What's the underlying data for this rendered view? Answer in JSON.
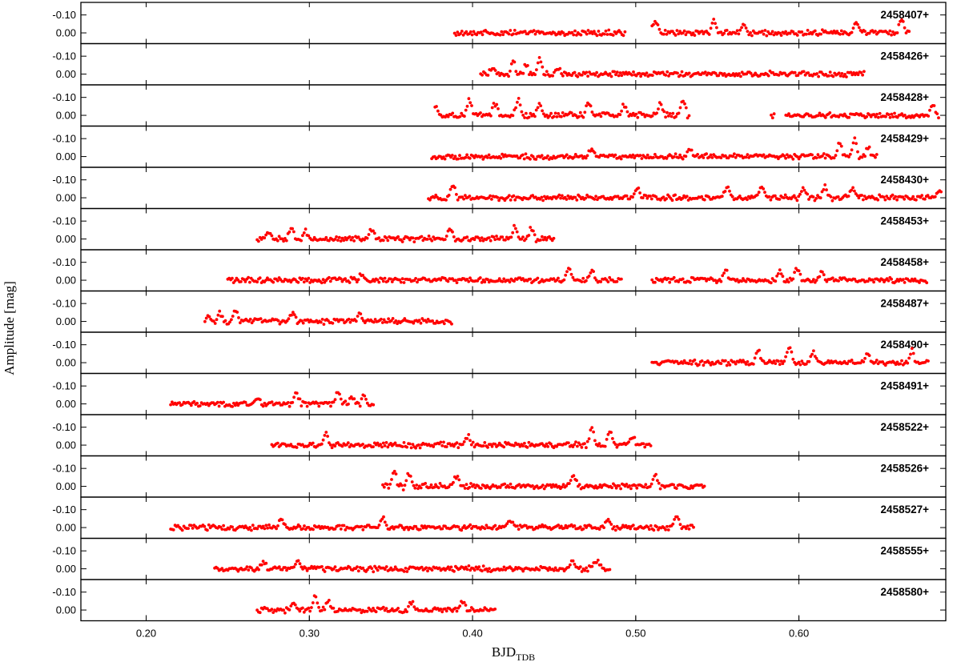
{
  "chart_data": {
    "type": "scatter",
    "title": "",
    "xlabel": {
      "main": "BJD",
      "sub": "TDB"
    },
    "ylabel": "Amplitude [mag]",
    "xlim": [
      0.16,
      0.69
    ],
    "ylim_per_panel": [
      0.06,
      -0.17
    ],
    "y_inverted": true,
    "x_ticks": [
      0.2,
      0.3,
      0.4,
      0.5,
      0.6
    ],
    "x_tick_labels": [
      "0.20",
      "0.30",
      "0.40",
      "0.50",
      "0.60"
    ],
    "y_ticks": [
      -0.1,
      0.0
    ],
    "y_tick_labels": [
      "-0.10",
      "0.00"
    ],
    "marker_color": "#ff0000",
    "grid": false,
    "panels": [
      {
        "date_label": "2458407+",
        "segments": [
          [
            0.389,
            0.494
          ],
          [
            0.51,
            0.668
          ]
        ],
        "bursts": [
          [
            0.512,
            0.06
          ],
          [
            0.548,
            0.07
          ],
          [
            0.566,
            0.05
          ],
          [
            0.635,
            0.06
          ],
          [
            0.663,
            0.07
          ]
        ]
      },
      {
        "date_label": "2458426+",
        "segments": [
          [
            0.405,
            0.64
          ]
        ],
        "bursts": [
          [
            0.412,
            0.04
          ],
          [
            0.425,
            0.07
          ],
          [
            0.433,
            0.06
          ],
          [
            0.441,
            0.08
          ],
          [
            0.452,
            0.03
          ]
        ]
      },
      {
        "date_label": "2458428+",
        "segments": [
          [
            0.377,
            0.533
          ],
          [
            0.583,
            0.585
          ],
          [
            0.592,
            0.686
          ]
        ],
        "bursts": [
          [
            0.377,
            0.06
          ],
          [
            0.398,
            0.08
          ],
          [
            0.414,
            0.07
          ],
          [
            0.428,
            0.08
          ],
          [
            0.441,
            0.06
          ],
          [
            0.471,
            0.08
          ],
          [
            0.493,
            0.06
          ],
          [
            0.515,
            0.06
          ],
          [
            0.529,
            0.07
          ],
          [
            0.682,
            0.05
          ]
        ]
      },
      {
        "date_label": "2458429+",
        "segments": [
          [
            0.375,
            0.648
          ]
        ],
        "bursts": [
          [
            0.473,
            0.04
          ],
          [
            0.533,
            0.04
          ],
          [
            0.625,
            0.07
          ],
          [
            0.634,
            0.09
          ],
          [
            0.642,
            0.05
          ]
        ]
      },
      {
        "date_label": "2458430+",
        "segments": [
          [
            0.373,
            0.688
          ]
        ],
        "bursts": [
          [
            0.388,
            0.07
          ],
          [
            0.501,
            0.05
          ],
          [
            0.556,
            0.06
          ],
          [
            0.577,
            0.06
          ],
          [
            0.603,
            0.05
          ],
          [
            0.616,
            0.06
          ],
          [
            0.633,
            0.06
          ],
          [
            0.686,
            0.04
          ]
        ]
      },
      {
        "date_label": "2458453+",
        "segments": [
          [
            0.268,
            0.45
          ]
        ],
        "bursts": [
          [
            0.275,
            0.04
          ],
          [
            0.289,
            0.06
          ],
          [
            0.297,
            0.05
          ],
          [
            0.338,
            0.05
          ],
          [
            0.386,
            0.06
          ],
          [
            0.426,
            0.06
          ],
          [
            0.436,
            0.05
          ]
        ]
      },
      {
        "date_label": "2458458+",
        "segments": [
          [
            0.25,
            0.492
          ],
          [
            0.51,
            0.679
          ]
        ],
        "bursts": [
          [
            0.332,
            0.04
          ],
          [
            0.459,
            0.07
          ],
          [
            0.473,
            0.05
          ],
          [
            0.555,
            0.05
          ],
          [
            0.588,
            0.05
          ],
          [
            0.599,
            0.06
          ],
          [
            0.614,
            0.05
          ]
        ]
      },
      {
        "date_label": "2458487+",
        "segments": [
          [
            0.236,
            0.388
          ]
        ],
        "bursts": [
          [
            0.239,
            0.04
          ],
          [
            0.245,
            0.06
          ],
          [
            0.255,
            0.05
          ],
          [
            0.29,
            0.05
          ],
          [
            0.331,
            0.04
          ]
        ]
      },
      {
        "date_label": "2458490+",
        "segments": [
          [
            0.51,
            0.68
          ]
        ],
        "bursts": [
          [
            0.575,
            0.06
          ],
          [
            0.594,
            0.08
          ],
          [
            0.609,
            0.06
          ],
          [
            0.642,
            0.05
          ],
          [
            0.669,
            0.06
          ]
        ]
      },
      {
        "date_label": "2458491+",
        "segments": [
          [
            0.215,
            0.34
          ]
        ],
        "bursts": [
          [
            0.268,
            0.04
          ],
          [
            0.292,
            0.05
          ],
          [
            0.318,
            0.07
          ],
          [
            0.326,
            0.06
          ],
          [
            0.333,
            0.06
          ]
        ]
      },
      {
        "date_label": "2458522+",
        "segments": [
          [
            0.277,
            0.51
          ]
        ],
        "bursts": [
          [
            0.31,
            0.06
          ],
          [
            0.397,
            0.05
          ],
          [
            0.473,
            0.09
          ],
          [
            0.484,
            0.07
          ],
          [
            0.498,
            0.05
          ]
        ]
      },
      {
        "date_label": "2458526+",
        "segments": [
          [
            0.345,
            0.543
          ]
        ],
        "bursts": [
          [
            0.352,
            0.07
          ],
          [
            0.361,
            0.06
          ],
          [
            0.39,
            0.05
          ],
          [
            0.462,
            0.05
          ],
          [
            0.512,
            0.06
          ]
        ]
      },
      {
        "date_label": "2458527+",
        "segments": [
          [
            0.215,
            0.536
          ]
        ],
        "bursts": [
          [
            0.283,
            0.04
          ],
          [
            0.345,
            0.05
          ],
          [
            0.423,
            0.04
          ],
          [
            0.483,
            0.05
          ],
          [
            0.525,
            0.05
          ]
        ]
      },
      {
        "date_label": "2458555+",
        "segments": [
          [
            0.242,
            0.485
          ]
        ],
        "bursts": [
          [
            0.272,
            0.04
          ],
          [
            0.293,
            0.04
          ],
          [
            0.461,
            0.04
          ],
          [
            0.475,
            0.06
          ],
          [
            0.479,
            0.05
          ]
        ]
      },
      {
        "date_label": "2458580+",
        "segments": [
          [
            0.268,
            0.414
          ]
        ],
        "bursts": [
          [
            0.29,
            0.04
          ],
          [
            0.304,
            0.08
          ],
          [
            0.311,
            0.06
          ],
          [
            0.363,
            0.04
          ],
          [
            0.394,
            0.04
          ]
        ]
      }
    ]
  }
}
